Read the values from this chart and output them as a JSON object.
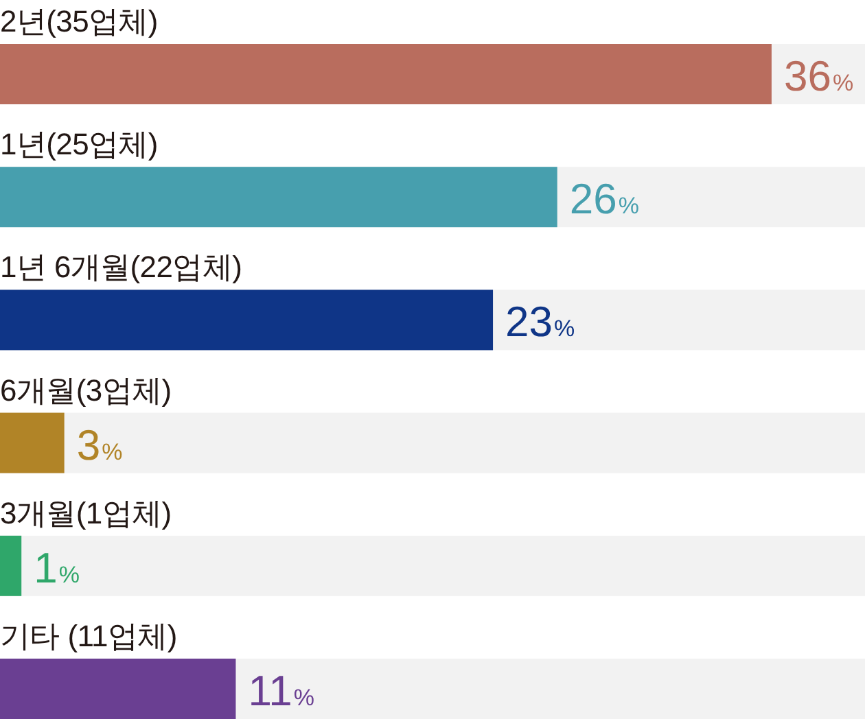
{
  "chart_data": {
    "type": "bar",
    "orientation": "horizontal",
    "categories": [
      "2년(35업체)",
      "1년(25업체)",
      "1년 6개월(22업체)",
      "6개월(3업체)",
      "3개월(1업체)",
      "기타 (11업체)"
    ],
    "values": [
      36,
      26,
      23,
      3,
      1,
      11
    ],
    "colors": [
      "#b96d5e",
      "#479fae",
      "#0f3587",
      "#b18427",
      "#2fa76a",
      "#6a3f92"
    ],
    "value_labels": [
      "36%",
      "26%",
      "23%",
      "3%",
      "1%",
      "11%"
    ]
  }
}
